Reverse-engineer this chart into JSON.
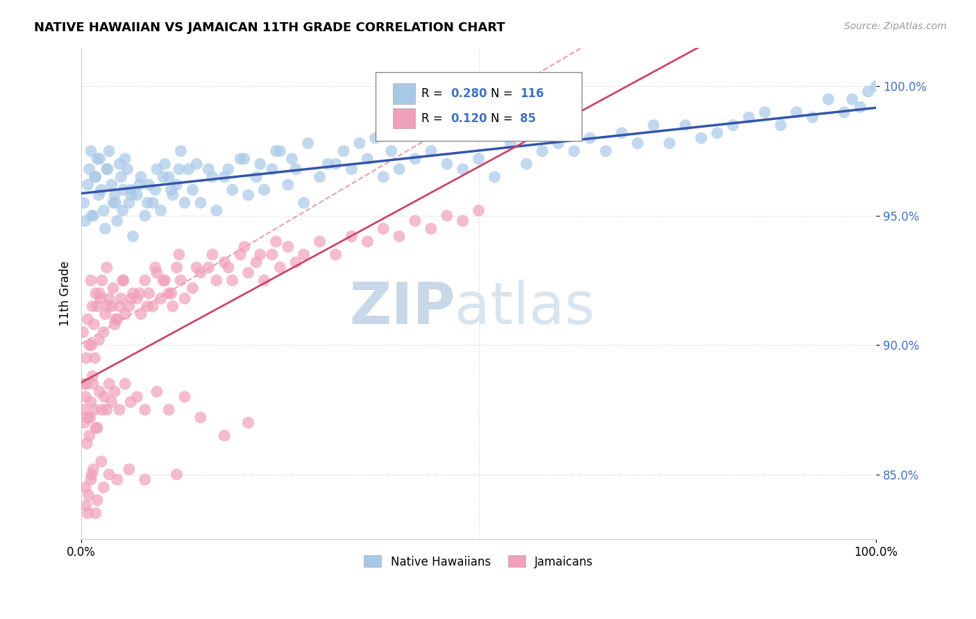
{
  "title": "NATIVE HAWAIIAN VS JAMAICAN 11TH GRADE CORRELATION CHART",
  "source_text": "Source: ZipAtlas.com",
  "ylabel": "11th Grade",
  "xlim": [
    0,
    100
  ],
  "ylim": [
    82.5,
    101.5
  ],
  "y_tick_positions": [
    85,
    90,
    95,
    100
  ],
  "blue_color": "#a8c8e8",
  "pink_color": "#f0a0b8",
  "blue_line_color": "#3355aa",
  "pink_line_color": "#cc4466",
  "dashed_line_color": "#e08898",
  "watermark_zip": "ZIP",
  "watermark_atlas": "atlas",
  "watermark_color": "#c8d8e8",
  "R_blue": 0.28,
  "N_blue": 116,
  "R_pink": 0.12,
  "N_pink": 85,
  "blue_scatter_x": [
    0.3,
    0.5,
    0.8,
    1.0,
    1.2,
    1.5,
    1.8,
    2.0,
    2.2,
    2.5,
    2.8,
    3.0,
    3.2,
    3.5,
    3.8,
    4.0,
    4.2,
    4.5,
    4.8,
    5.0,
    5.2,
    5.5,
    5.8,
    6.0,
    6.2,
    6.5,
    7.0,
    7.5,
    8.0,
    8.5,
    9.0,
    9.5,
    10.0,
    10.5,
    11.0,
    11.5,
    12.0,
    12.5,
    13.0,
    13.5,
    14.0,
    15.0,
    16.0,
    17.0,
    18.0,
    19.0,
    20.0,
    21.0,
    22.0,
    23.0,
    24.0,
    25.0,
    26.0,
    27.0,
    28.0,
    30.0,
    32.0,
    34.0,
    36.0,
    38.0,
    40.0,
    42.0,
    44.0,
    46.0,
    48.0,
    50.0,
    52.0,
    54.0,
    56.0,
    58.0,
    60.0,
    62.0,
    64.0,
    66.0,
    68.0,
    70.0,
    72.0,
    74.0,
    76.0,
    78.0,
    80.0,
    82.0,
    84.0,
    86.0,
    88.0,
    90.0,
    92.0,
    94.0,
    96.0,
    97.0,
    98.0,
    99.0,
    100.0,
    1.3,
    1.7,
    2.3,
    3.3,
    4.3,
    5.3,
    6.3,
    7.3,
    8.3,
    9.3,
    10.3,
    11.3,
    12.3,
    14.5,
    16.5,
    18.5,
    20.5,
    22.5,
    24.5,
    26.5,
    28.5,
    31.0,
    33.0,
    35.0,
    37.0,
    39.0
  ],
  "blue_scatter_y": [
    95.5,
    94.8,
    96.2,
    96.8,
    97.5,
    95.0,
    96.5,
    97.2,
    95.8,
    96.0,
    95.2,
    94.5,
    96.8,
    97.5,
    96.2,
    95.5,
    95.8,
    94.8,
    97.0,
    96.5,
    95.2,
    97.2,
    96.8,
    95.5,
    96.0,
    94.2,
    95.8,
    96.5,
    95.0,
    96.2,
    95.5,
    96.8,
    95.2,
    97.0,
    96.5,
    95.8,
    96.2,
    97.5,
    95.5,
    96.8,
    96.0,
    95.5,
    96.8,
    95.2,
    96.5,
    96.0,
    97.2,
    95.8,
    96.5,
    96.0,
    96.8,
    97.5,
    96.2,
    96.8,
    95.5,
    96.5,
    97.0,
    96.8,
    97.2,
    96.5,
    96.8,
    97.2,
    97.5,
    97.0,
    96.8,
    97.2,
    96.5,
    97.8,
    97.0,
    97.5,
    97.8,
    97.5,
    98.0,
    97.5,
    98.2,
    97.8,
    98.5,
    97.8,
    98.5,
    98.0,
    98.2,
    98.5,
    98.8,
    99.0,
    98.5,
    99.0,
    98.8,
    99.5,
    99.0,
    99.5,
    99.2,
    99.8,
    100.0,
    95.0,
    96.5,
    97.2,
    96.8,
    95.5,
    96.0,
    95.8,
    96.2,
    95.5,
    96.0,
    96.5,
    96.0,
    96.8,
    97.0,
    96.5,
    96.8,
    97.2,
    97.0,
    97.5,
    97.2,
    97.8,
    97.0,
    97.5,
    97.8,
    98.0,
    97.5
  ],
  "pink_scatter_x": [
    0.2,
    0.4,
    0.6,
    0.8,
    1.0,
    1.2,
    1.4,
    1.6,
    1.8,
    2.0,
    2.2,
    2.4,
    2.6,
    2.8,
    3.0,
    3.2,
    3.5,
    3.8,
    4.0,
    4.2,
    4.5,
    4.8,
    5.0,
    5.2,
    5.5,
    6.0,
    6.5,
    7.0,
    7.5,
    8.0,
    8.5,
    9.0,
    9.5,
    10.0,
    10.5,
    11.0,
    11.5,
    12.0,
    12.5,
    13.0,
    14.0,
    15.0,
    16.0,
    17.0,
    18.0,
    19.0,
    20.0,
    21.0,
    22.0,
    23.0,
    24.0,
    25.0,
    26.0,
    27.0,
    28.0,
    30.0,
    32.0,
    34.0,
    36.0,
    38.0,
    40.0,
    42.0,
    44.0,
    46.0,
    48.0,
    50.0,
    1.3,
    1.7,
    2.3,
    3.3,
    4.3,
    5.3,
    6.3,
    7.3,
    8.3,
    9.3,
    10.3,
    11.3,
    12.3,
    14.5,
    16.5,
    18.5,
    20.5,
    22.5,
    24.5
  ],
  "pink_scatter_y": [
    90.5,
    88.5,
    89.5,
    91.0,
    90.0,
    92.5,
    91.5,
    90.8,
    92.0,
    91.5,
    90.2,
    91.8,
    92.5,
    90.5,
    91.2,
    93.0,
    91.8,
    91.5,
    92.2,
    90.8,
    91.0,
    91.5,
    91.8,
    92.5,
    91.2,
    91.5,
    92.0,
    91.8,
    91.2,
    92.5,
    92.0,
    91.5,
    92.8,
    91.8,
    92.5,
    92.0,
    91.5,
    93.0,
    92.5,
    91.8,
    92.2,
    92.8,
    93.0,
    92.5,
    93.2,
    92.5,
    93.5,
    92.8,
    93.2,
    92.5,
    93.5,
    93.0,
    93.8,
    93.2,
    93.5,
    94.0,
    93.5,
    94.2,
    94.0,
    94.5,
    94.2,
    94.8,
    94.5,
    95.0,
    94.8,
    95.2,
    90.0,
    89.5,
    92.0,
    91.5,
    91.0,
    92.5,
    91.8,
    92.0,
    91.5,
    93.0,
    92.5,
    92.0,
    93.5,
    93.0,
    93.5,
    93.0,
    93.8,
    93.5,
    94.0
  ],
  "pink_extra_low_x": [
    0.3,
    0.5,
    0.8,
    1.0,
    1.2,
    1.5,
    1.8,
    0.4,
    0.7,
    0.6,
    1.1,
    1.4,
    1.7,
    2.0,
    2.3,
    2.6,
    2.9,
    3.2,
    3.5,
    3.8,
    4.2,
    4.8,
    5.5,
    6.2,
    7.0,
    8.0,
    9.5,
    11.0,
    13.0,
    15.0,
    18.0,
    21.0
  ],
  "pink_extra_low_y": [
    87.5,
    88.0,
    87.2,
    86.5,
    87.8,
    88.5,
    86.8,
    87.0,
    86.2,
    88.5,
    87.2,
    88.8,
    87.5,
    86.8,
    88.2,
    87.5,
    88.0,
    87.5,
    88.5,
    87.8,
    88.2,
    87.5,
    88.5,
    87.8,
    88.0,
    87.5,
    88.2,
    87.5,
    88.0,
    87.2,
    86.5,
    87.0
  ],
  "pink_very_low_x": [
    0.5,
    0.8,
    1.2,
    1.5,
    2.0,
    2.5,
    0.6,
    0.9,
    1.3,
    1.8,
    2.8,
    3.5,
    4.5,
    6.0,
    8.0,
    12.0
  ],
  "pink_very_low_y": [
    84.5,
    83.5,
    84.8,
    85.2,
    84.0,
    85.5,
    83.8,
    84.2,
    85.0,
    83.5,
    84.5,
    85.0,
    84.8,
    85.2,
    84.8,
    85.0
  ]
}
